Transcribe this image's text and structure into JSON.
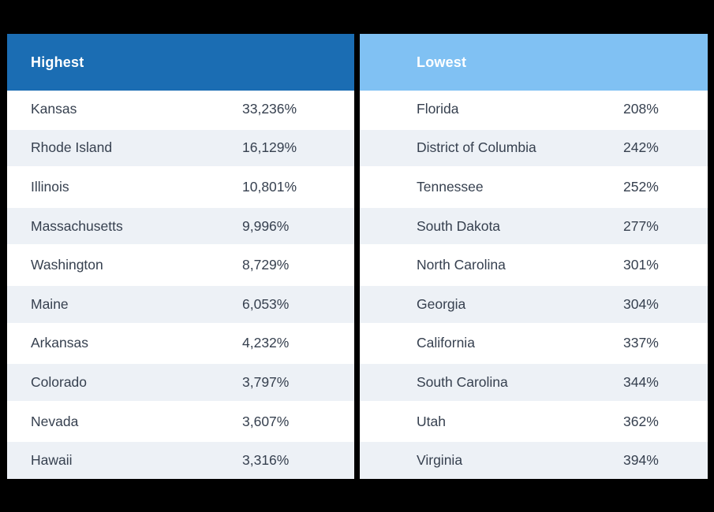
{
  "colors": {
    "frame": "#000000",
    "highest_header_bg": "#1b6db3",
    "lowest_header_bg": "#80c1f3",
    "header_text": "#ffffff",
    "row_stripe": "#edf1f6",
    "row_text": "#36404f"
  },
  "highest": {
    "title": "Highest",
    "rows": [
      {
        "state": "Kansas",
        "value": "33,236%"
      },
      {
        "state": "Rhode Island",
        "value": "16,129%"
      },
      {
        "state": "Illinois",
        "value": "10,801%"
      },
      {
        "state": "Massachusetts",
        "value": "9,996%"
      },
      {
        "state": "Washington",
        "value": "8,729%"
      },
      {
        "state": "Maine",
        "value": "6,053%"
      },
      {
        "state": "Arkansas",
        "value": "4,232%"
      },
      {
        "state": "Colorado",
        "value": "3,797%"
      },
      {
        "state": "Nevada",
        "value": "3,607%"
      },
      {
        "state": "Hawaii",
        "value": "3,316%"
      }
    ]
  },
  "lowest": {
    "title": "Lowest",
    "rows": [
      {
        "state": "Florida",
        "value": "208%"
      },
      {
        "state": "District of Columbia",
        "value": "242%"
      },
      {
        "state": "Tennessee",
        "value": "252%"
      },
      {
        "state": "South Dakota",
        "value": "277%"
      },
      {
        "state": "North Carolina",
        "value": "301%"
      },
      {
        "state": "Georgia",
        "value": "304%"
      },
      {
        "state": "California",
        "value": "337%"
      },
      {
        "state": "South Carolina",
        "value": "344%"
      },
      {
        "state": "Utah",
        "value": "362%"
      },
      {
        "state": "Virginia",
        "value": "394%"
      }
    ]
  },
  "chart_data": [
    {
      "type": "table",
      "title": "Highest",
      "unit": "%",
      "rows": [
        [
          "Kansas",
          33236
        ],
        [
          "Rhode Island",
          16129
        ],
        [
          "Illinois",
          10801
        ],
        [
          "Massachusetts",
          9996
        ],
        [
          "Washington",
          8729
        ],
        [
          "Maine",
          6053
        ],
        [
          "Arkansas",
          4232
        ],
        [
          "Colorado",
          3797
        ],
        [
          "Nevada",
          3607
        ],
        [
          "Hawaii",
          3316
        ]
      ]
    },
    {
      "type": "table",
      "title": "Lowest",
      "unit": "%",
      "rows": [
        [
          "Florida",
          208
        ],
        [
          "District of Columbia",
          242
        ],
        [
          "Tennessee",
          252
        ],
        [
          "South Dakota",
          277
        ],
        [
          "North Carolina",
          301
        ],
        [
          "Georgia",
          304
        ],
        [
          "California",
          337
        ],
        [
          "South Carolina",
          344
        ],
        [
          "Utah",
          362
        ],
        [
          "Virginia",
          394
        ]
      ]
    }
  ]
}
